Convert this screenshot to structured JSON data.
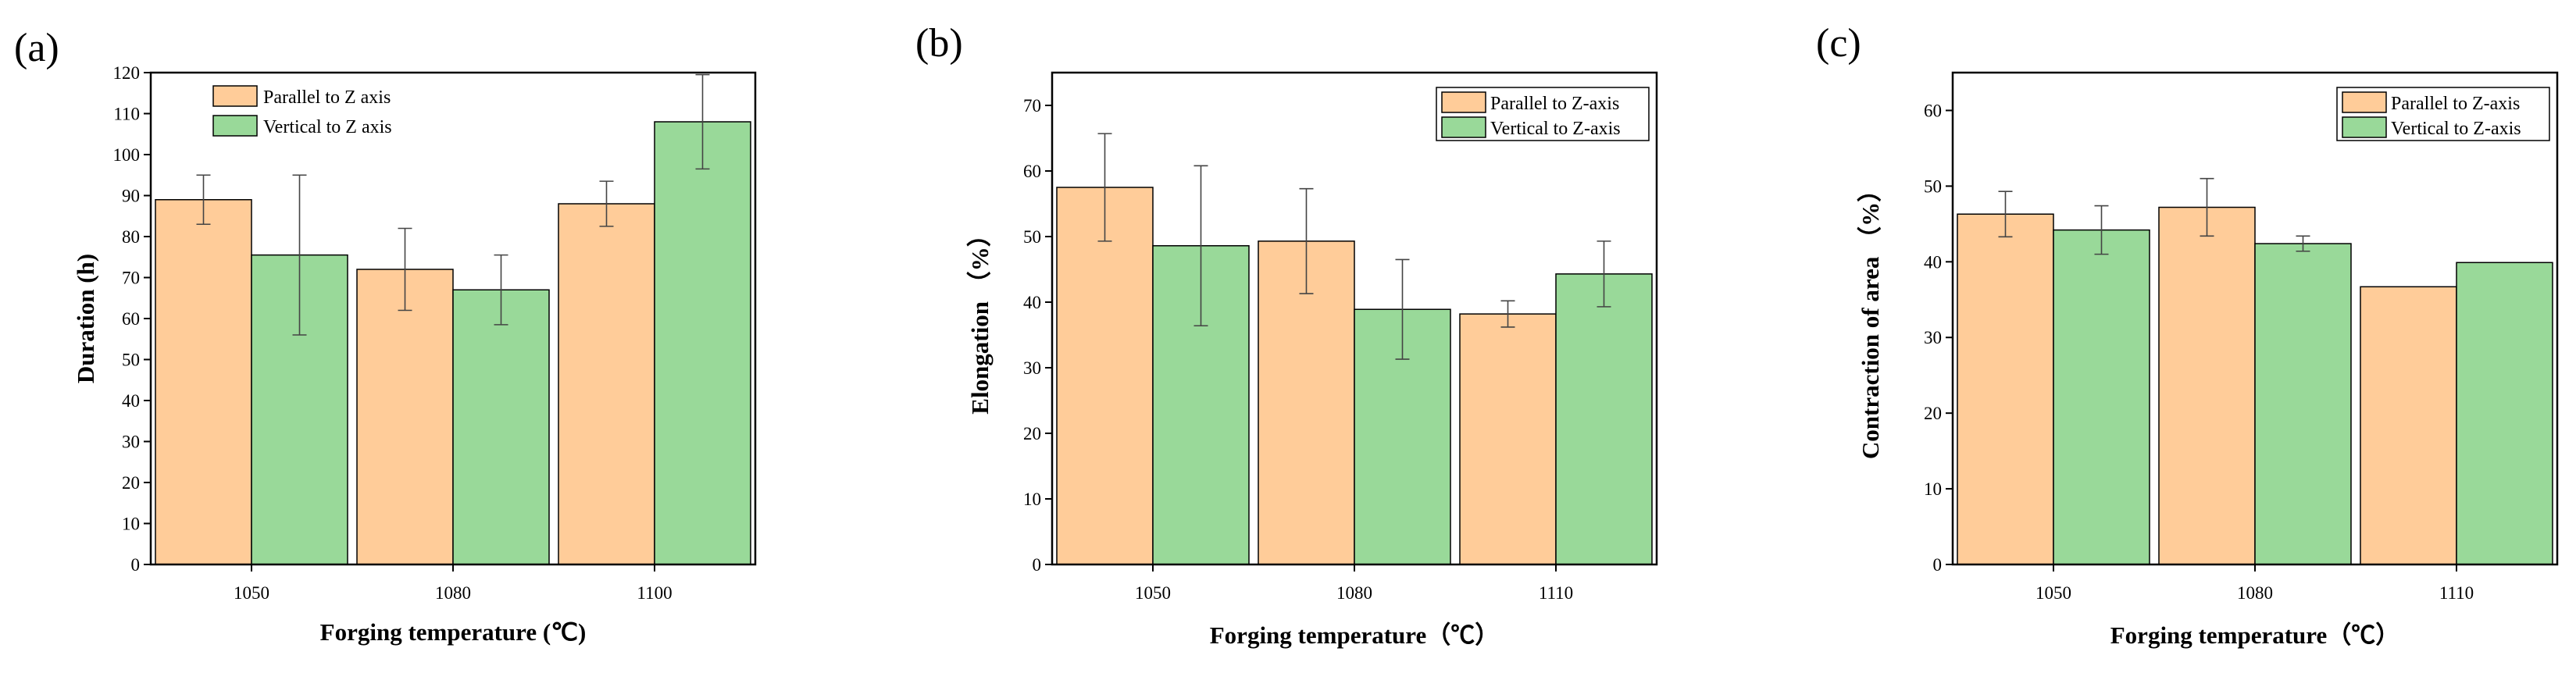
{
  "colors": {
    "parallel": "#FFCC99",
    "vertical": "#99D999",
    "bar_stroke": "#000000",
    "error_bar": "#444444"
  },
  "chart_data": [
    {
      "type": "bar",
      "panel": "(a)",
      "categories": [
        "1050",
        "1080",
        "1100"
      ],
      "xlabel": "Forging temperature (℃)",
      "ylabel": "Duration (h)",
      "ylim": [
        0,
        120
      ],
      "yticks": [
        0,
        10,
        20,
        30,
        40,
        50,
        60,
        70,
        80,
        90,
        100,
        110,
        120
      ],
      "legend_position": "top-left",
      "series": [
        {
          "name": "Parallel to Z axis",
          "values": [
            89,
            72,
            88
          ],
          "errors": [
            6,
            10,
            5.5
          ]
        },
        {
          "name": "Vertical to Z axis",
          "values": [
            75.5,
            67,
            108
          ],
          "errors": [
            19.5,
            8.5,
            11.5
          ]
        }
      ]
    },
    {
      "type": "bar",
      "panel": "(b)",
      "categories": [
        "1050",
        "1080",
        "1110"
      ],
      "xlabel": "Forging temperature（℃）",
      "ylabel": "Elongation （%）",
      "ylim": [
        0,
        75
      ],
      "yticks": [
        0,
        10,
        20,
        30,
        40,
        50,
        60,
        70
      ],
      "legend_position": "top-right",
      "series": [
        {
          "name": "Parallel to Z-axis",
          "values": [
            57.5,
            49.3,
            38.2
          ],
          "errors": [
            8.2,
            8.0,
            2.0
          ]
        },
        {
          "name": "Vertical to Z-axis",
          "values": [
            48.6,
            38.9,
            44.3
          ],
          "errors": [
            12.2,
            7.6,
            5.0
          ]
        }
      ]
    },
    {
      "type": "bar",
      "panel": "(c)",
      "categories": [
        "1050",
        "1080",
        "1110"
      ],
      "xlabel": "Forging temperature（℃）",
      "ylabel": "Contraction of area （%）",
      "ylim": [
        0,
        65
      ],
      "yticks": [
        0,
        10,
        20,
        30,
        40,
        50,
        60
      ],
      "legend_position": "top-right",
      "series": [
        {
          "name": "Parallel to Z-axis",
          "values": [
            46.3,
            47.2,
            36.7
          ],
          "errors": [
            3.0,
            3.8,
            0
          ]
        },
        {
          "name": "Vertical to Z-axis",
          "values": [
            44.2,
            42.4,
            39.9
          ],
          "errors": [
            3.2,
            1.0,
            0
          ]
        }
      ]
    }
  ]
}
